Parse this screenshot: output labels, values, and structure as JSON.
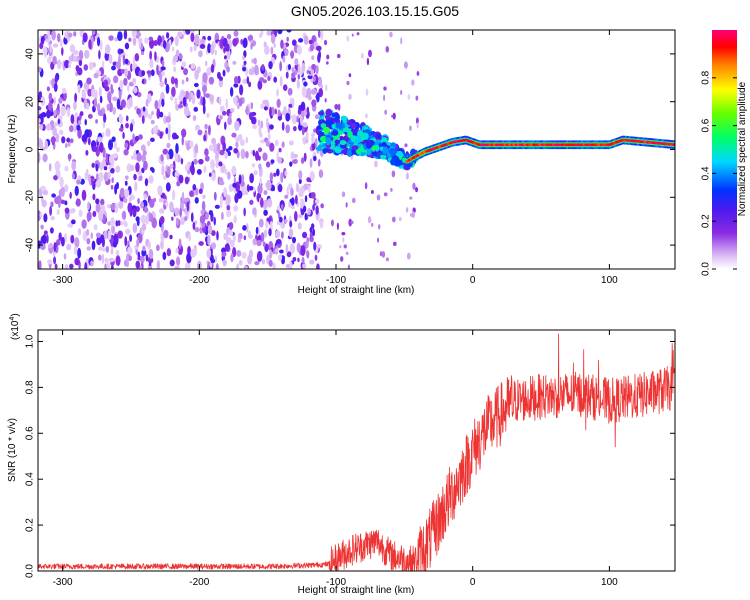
{
  "title": "GN05.2026.103.15.15.G05",
  "chart_data": [
    {
      "type": "heatmap",
      "xlabel": "Height of straight line (km)",
      "ylabel": "Frequency (Hz)",
      "xlim": [
        -318,
        148
      ],
      "ylim": [
        -50,
        50
      ],
      "x_ticks": [
        -300,
        -200,
        -100,
        0,
        100
      ],
      "x_tick_labels": [
        "-300",
        "-200",
        "-100",
        "0",
        "100"
      ],
      "y_ticks": [
        -40,
        -20,
        0,
        20,
        40
      ],
      "y_tick_labels": [
        "-40",
        "-20",
        "0",
        "20",
        "40"
      ],
      "colorbar": {
        "label": "Normalized spectral amplitude",
        "range": [
          0,
          1
        ],
        "ticks": [
          0.0,
          0.2,
          0.4,
          0.6,
          0.8
        ],
        "tick_labels": [
          "0.0",
          "0.2",
          "0.4",
          "0.6",
          "0.8"
        ],
        "colormap": "rainbow (white → violet → blue → cyan → green → yellow → red → magenta)"
      },
      "regions": [
        {
          "x_range": [
            -318,
            -110
          ],
          "description": "broadband noise, amplitude 0.0–0.25 (violet)"
        },
        {
          "x_range": [
            -110,
            -45
          ],
          "description": "signal emerging, frequency spread ~±10 Hz, amplitude 0.3–0.5"
        },
        {
          "x_range": [
            -45,
            148
          ],
          "description": "narrow line at ~2 Hz, amplitude ~0.9–1.0"
        }
      ],
      "ridge": {
        "x": [
          -110,
          -95,
          -80,
          -65,
          -55,
          -48,
          -42,
          -35,
          -25,
          -15,
          -5,
          5,
          20,
          50,
          100,
          110,
          148
        ],
        "y": [
          8,
          6,
          4,
          1,
          -3,
          -5,
          -3,
          -1,
          1,
          3,
          4,
          2,
          2,
          2,
          2,
          4,
          2
        ]
      }
    },
    {
      "type": "line",
      "xlabel": "Height of straight line (km)",
      "ylabel": "SNR (10 * v/v)",
      "y_multiplier": "(x10^4)",
      "xlim": [
        -318,
        148
      ],
      "ylim": [
        0,
        1.05
      ],
      "x_ticks": [
        -300,
        -200,
        -100,
        0,
        100
      ],
      "x_tick_labels": [
        "-300",
        "-200",
        "-100",
        "0",
        "100"
      ],
      "y_ticks": [
        0.0,
        0.2,
        0.4,
        0.6,
        0.8,
        1.0
      ],
      "y_tick_labels": [
        "0.0",
        "0.2",
        "0.4",
        "0.6",
        "0.8",
        "1.0"
      ],
      "color": "#ee3333",
      "series": [
        {
          "x": [
            -318,
            -300,
            -250,
            -200,
            -150,
            -120,
            -105,
            -100,
            -90,
            -80,
            -70,
            -60,
            -50,
            -45,
            -40,
            -30,
            -20,
            -10,
            0,
            10,
            20,
            30,
            50,
            80,
            100,
            120,
            148
          ],
          "values": [
            0.02,
            0.02,
            0.02,
            0.02,
            0.02,
            0.025,
            0.03,
            0.05,
            0.09,
            0.11,
            0.13,
            0.07,
            0.05,
            0.04,
            0.05,
            0.15,
            0.28,
            0.4,
            0.52,
            0.62,
            0.68,
            0.74,
            0.76,
            0.77,
            0.74,
            0.76,
            0.8
          ]
        }
      ]
    }
  ]
}
